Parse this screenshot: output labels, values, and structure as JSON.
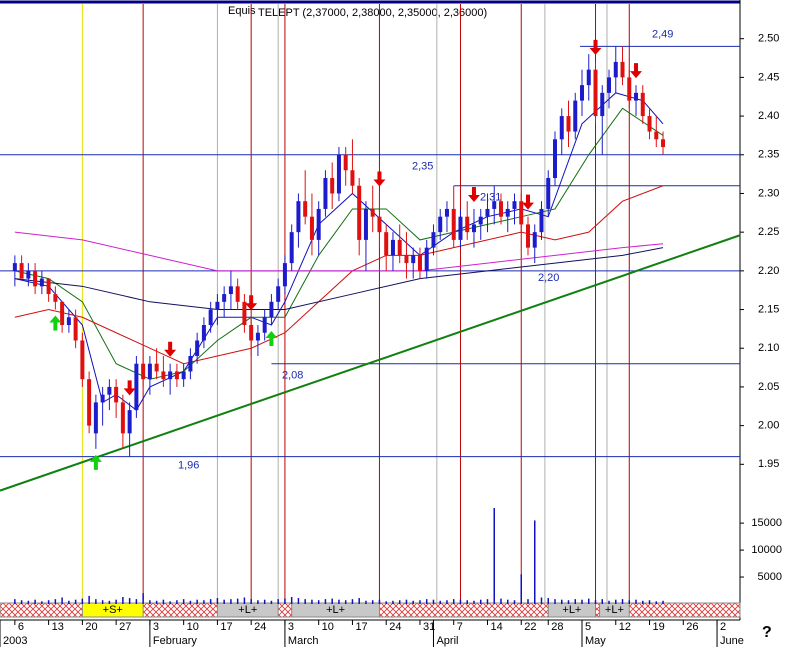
{
  "chart_data": {
    "type": "candlestick",
    "title": "TELEPT (2,37000, 2,38000, 2,35000, 2,36000)",
    "header": "Equis",
    "help": "?",
    "ylim": [
      1.9,
      2.55
    ],
    "yticks": [
      1.95,
      {
        "value": 2.0,
        "label": "2.00"
      },
      2.05,
      {
        "value": 2.1,
        "label": "2.10"
      },
      2.15,
      {
        "value": 2.2,
        "label": "2.20"
      },
      2.25,
      {
        "value": 2.3,
        "label": "2.30"
      },
      2.35,
      {
        "value": 2.4,
        "label": "2.40"
      },
      2.45,
      {
        "value": 2.5,
        "label": "2.50"
      }
    ],
    "xlim": [
      -2.2,
      107.4
    ],
    "xticks": [
      {
        "value": 0,
        "label": "6"
      },
      {
        "value": 5,
        "label": "13"
      },
      {
        "value": 10,
        "label": "20"
      },
      {
        "value": 15,
        "label": "27"
      },
      {
        "value": 20,
        "label": "3"
      },
      {
        "value": 25,
        "label": "10"
      },
      {
        "value": 30,
        "label": "17"
      },
      {
        "value": 35,
        "label": "24"
      },
      {
        "value": 40,
        "label": "3"
      },
      {
        "value": 45,
        "label": "10"
      },
      {
        "value": 50,
        "label": "17"
      },
      {
        "value": 55,
        "label": "24"
      },
      {
        "value": 60,
        "label": "31"
      },
      {
        "value": 65,
        "label": "7"
      },
      {
        "value": 70,
        "label": "14"
      },
      {
        "value": 75,
        "label": "22"
      },
      {
        "value": 79,
        "label": "28"
      },
      {
        "value": 84,
        "label": "5"
      },
      {
        "value": 89,
        "label": "12"
      },
      {
        "value": 94,
        "label": "19"
      },
      {
        "value": 99,
        "label": "26"
      },
      {
        "value": 104,
        "label": "2"
      }
    ],
    "month_ticks": [
      {
        "value": -2.2,
        "label": "2003"
      },
      {
        "value": 20,
        "label": "February"
      },
      {
        "value": 40,
        "label": "March"
      },
      {
        "value": 62,
        "label": "April"
      },
      {
        "value": 84,
        "label": "May"
      },
      {
        "value": 104,
        "label": "June"
      }
    ],
    "up_color": "#1c1ccc",
    "down_color": "#e01010",
    "open": [
      2.2,
      2.21,
      2.19,
      2.2,
      2.18,
      2.19,
      2.17,
      2.16,
      2.13,
      2.14,
      2.11,
      2.06,
      1.99,
      2.03,
      2.04,
      2.05,
      2.03,
      1.99,
      2.02,
      2.08,
      2.06,
      2.08,
      2.07,
      2.06,
      2.07,
      2.06,
      2.07,
      2.09,
      2.11,
      2.13,
      2.15,
      2.16,
      2.17,
      2.18,
      2.16,
      2.13,
      2.11,
      2.12,
      2.14,
      2.16,
      2.18,
      2.21,
      2.25,
      2.29,
      2.27,
      2.24,
      2.28,
      2.32,
      2.3,
      2.35,
      2.33,
      2.31,
      2.24,
      2.28,
      2.27,
      2.25,
      2.22,
      2.24,
      2.22,
      2.21,
      2.22,
      2.2,
      2.23,
      2.25,
      2.27,
      2.28,
      2.24,
      2.27,
      2.25,
      2.26,
      2.27,
      2.28,
      2.29,
      2.27,
      2.28,
      2.29,
      2.26,
      2.23,
      2.25,
      2.28,
      2.32,
      2.37,
      2.4,
      2.38,
      2.42,
      2.44,
      2.46,
      2.4,
      2.43,
      2.45,
      2.47,
      2.45,
      2.42,
      2.43,
      2.4,
      2.38,
      2.37
    ],
    "high": [
      2.22,
      2.22,
      2.21,
      2.21,
      2.2,
      2.19,
      2.18,
      2.16,
      2.15,
      2.15,
      2.12,
      2.07,
      2.04,
      2.05,
      2.06,
      2.06,
      2.04,
      2.03,
      2.09,
      2.1,
      2.09,
      2.1,
      2.09,
      2.08,
      2.08,
      2.08,
      2.1,
      2.12,
      2.14,
      2.16,
      2.17,
      2.18,
      2.2,
      2.19,
      2.17,
      2.14,
      2.13,
      2.15,
      2.17,
      2.19,
      2.22,
      2.26,
      2.3,
      2.33,
      2.3,
      2.29,
      2.33,
      2.34,
      2.36,
      2.36,
      2.37,
      2.32,
      2.29,
      2.31,
      2.3,
      2.26,
      2.25,
      2.26,
      2.25,
      2.23,
      2.23,
      2.24,
      2.26,
      2.28,
      2.29,
      2.31,
      2.28,
      2.29,
      2.28,
      2.28,
      2.3,
      2.31,
      2.3,
      2.29,
      2.3,
      2.3,
      2.27,
      2.26,
      2.29,
      2.33,
      2.38,
      2.41,
      2.42,
      2.43,
      2.46,
      2.48,
      2.47,
      2.44,
      2.46,
      2.49,
      2.49,
      2.46,
      2.44,
      2.44,
      2.41,
      2.4,
      2.38
    ],
    "low": [
      2.18,
      2.19,
      2.18,
      2.17,
      2.17,
      2.16,
      2.15,
      2.12,
      2.12,
      2.1,
      2.05,
      1.99,
      1.97,
      2.0,
      2.02,
      2.01,
      1.97,
      1.96,
      2.01,
      2.05,
      2.04,
      2.06,
      2.05,
      2.04,
      2.05,
      2.05,
      2.06,
      2.08,
      2.1,
      2.12,
      2.13,
      2.14,
      2.15,
      2.15,
      2.12,
      2.09,
      2.09,
      2.11,
      2.13,
      2.15,
      2.17,
      2.2,
      2.23,
      2.26,
      2.22,
      2.22,
      2.27,
      2.28,
      2.29,
      2.31,
      2.3,
      2.22,
      2.2,
      2.25,
      2.23,
      2.2,
      2.2,
      2.21,
      2.19,
      2.19,
      2.19,
      2.19,
      2.22,
      2.24,
      2.25,
      2.23,
      2.23,
      2.24,
      2.23,
      2.24,
      2.25,
      2.26,
      2.26,
      2.25,
      2.26,
      2.25,
      2.22,
      2.21,
      2.24,
      2.27,
      2.31,
      2.35,
      2.36,
      2.37,
      2.4,
      2.42,
      2.39,
      2.35,
      2.41,
      2.43,
      2.44,
      2.41,
      2.4,
      2.39,
      2.37,
      2.36,
      2.35
    ],
    "close": [
      2.21,
      2.19,
      2.2,
      2.18,
      2.19,
      2.17,
      2.16,
      2.13,
      2.14,
      2.11,
      2.06,
      2.0,
      2.03,
      2.04,
      2.05,
      2.03,
      1.99,
      2.02,
      2.08,
      2.06,
      2.08,
      2.07,
      2.06,
      2.07,
      2.06,
      2.07,
      2.09,
      2.11,
      2.13,
      2.15,
      2.16,
      2.17,
      2.18,
      2.16,
      2.13,
      2.11,
      2.12,
      2.14,
      2.16,
      2.18,
      2.21,
      2.25,
      2.29,
      2.27,
      2.24,
      2.28,
      2.32,
      2.3,
      2.35,
      2.33,
      2.31,
      2.24,
      2.28,
      2.27,
      2.25,
      2.22,
      2.24,
      2.22,
      2.21,
      2.22,
      2.2,
      2.23,
      2.25,
      2.27,
      2.28,
      2.24,
      2.27,
      2.25,
      2.26,
      2.27,
      2.28,
      2.29,
      2.27,
      2.28,
      2.29,
      2.26,
      2.23,
      2.25,
      2.28,
      2.32,
      2.37,
      2.4,
      2.38,
      2.42,
      2.44,
      2.46,
      2.4,
      2.43,
      2.45,
      2.47,
      2.45,
      2.42,
      2.43,
      2.4,
      2.38,
      2.37,
      2.36
    ],
    "volume": [
      900,
      700,
      600,
      800,
      500,
      700,
      900,
      1200,
      600,
      800,
      1000,
      1500,
      900,
      700,
      600,
      800,
      1300,
      1100,
      900,
      2000,
      700,
      600,
      800,
      500,
      700,
      900,
      600,
      800,
      700,
      900,
      1100,
      800,
      900,
      1000,
      1200,
      900,
      700,
      800,
      600,
      900,
      1000,
      1300,
      1100,
      900,
      800,
      700,
      900,
      1000,
      800,
      700,
      900,
      1100,
      600,
      700,
      800,
      500,
      600,
      700,
      800,
      600,
      700,
      900,
      800,
      600,
      700,
      900,
      800,
      700,
      600,
      800,
      900,
      17800,
      1000,
      800,
      700,
      5500,
      900,
      15500,
      1200,
      1100,
      900,
      800,
      700,
      900,
      800,
      1000,
      700,
      900,
      600,
      800,
      900,
      700,
      800,
      600,
      700,
      500,
      600
    ],
    "vlim": [
      0,
      21700
    ],
    "vticks": [
      5000,
      10000,
      15000
    ],
    "moving_averages": [
      {
        "color": "#1010c0",
        "x": [
          0,
          5,
          10,
          13,
          15,
          18,
          20,
          25,
          30,
          35,
          38,
          40,
          45,
          50,
          55,
          60,
          65,
          70,
          75,
          79,
          84,
          89,
          93,
          96
        ],
        "values": [
          2.19,
          2.18,
          2.13,
          2.03,
          2.04,
          2.02,
          2.05,
          2.07,
          2.14,
          2.14,
          2.13,
          2.16,
          2.26,
          2.3,
          2.26,
          2.22,
          2.25,
          2.27,
          2.28,
          2.27,
          2.39,
          2.43,
          2.42,
          2.39
        ]
      },
      {
        "color": "#107010",
        "x": [
          0,
          5,
          10,
          15,
          20,
          25,
          30,
          35,
          40,
          45,
          50,
          55,
          60,
          65,
          70,
          75,
          80,
          85,
          90,
          96
        ],
        "values": [
          2.2,
          2.19,
          2.16,
          2.08,
          2.06,
          2.07,
          2.11,
          2.14,
          2.14,
          2.22,
          2.28,
          2.28,
          2.24,
          2.25,
          2.26,
          2.27,
          2.28,
          2.35,
          2.41,
          2.375
        ]
      },
      {
        "color": "#d01010",
        "x": [
          0,
          5,
          10,
          15,
          20,
          25,
          30,
          35,
          40,
          45,
          50,
          55,
          60,
          65,
          70,
          75,
          80,
          85,
          90,
          96
        ],
        "values": [
          2.14,
          2.15,
          2.14,
          2.12,
          2.1,
          2.08,
          2.09,
          2.1,
          2.12,
          2.16,
          2.2,
          2.22,
          2.22,
          2.23,
          2.24,
          2.25,
          2.24,
          2.25,
          2.29,
          2.31
        ]
      },
      {
        "color": "#101060",
        "x": [
          0,
          10,
          20,
          30,
          40,
          50,
          60,
          70,
          80,
          90,
          96
        ],
        "values": [
          2.19,
          2.18,
          2.16,
          2.15,
          2.15,
          2.17,
          2.19,
          2.2,
          2.21,
          2.22,
          2.23
        ]
      },
      {
        "color": "#d020d0",
        "x": [
          0,
          10,
          20,
          30,
          40,
          50,
          60,
          70,
          80,
          90,
          96
        ],
        "values": [
          2.25,
          2.24,
          2.22,
          2.2,
          2.2,
          2.2,
          2.2,
          2.21,
          2.22,
          2.23,
          2.235
        ]
      }
    ],
    "trendline": {
      "color": "#108010",
      "x": [
        -2.2,
        107.4
      ],
      "values": [
        1.916,
        2.246
      ]
    },
    "levels": [
      {
        "value": 2.49,
        "label": "2,49",
        "from": 83.7
      },
      {
        "value": 2.35,
        "label": "2,35",
        "from": -2.2
      },
      {
        "value": 2.31,
        "label": "2,31",
        "from": 65
      },
      {
        "value": 2.2,
        "label": "2,20",
        "from": -2.2
      },
      {
        "value": 2.08,
        "label": "2,08",
        "from": 38
      },
      {
        "value": 1.96,
        "label": "1,96",
        "from": -2.2
      }
    ],
    "red_lines": [
      19,
      35,
      40,
      54,
      66,
      75,
      86,
      91
    ],
    "yellow_lines": [
      10
    ],
    "grey_lines": [
      30,
      39,
      62.5,
      78.5,
      87.7
    ],
    "signals_down": [
      17,
      23,
      35,
      54,
      68,
      76,
      86,
      92
    ],
    "signals_up": [
      6,
      12,
      38
    ],
    "strip": [
      {
        "from": 10,
        "to": 19,
        "label": "+S+",
        "color": "#ffff00"
      },
      {
        "from": 30,
        "to": 39,
        "label": "+L+",
        "color": "#c8c8c8"
      },
      {
        "from": 41,
        "to": 54,
        "label": "+L+",
        "color": "#c8c8c8"
      },
      {
        "from": 79,
        "to": 86,
        "label": "+L+",
        "color": "#c8c8c8"
      },
      {
        "from": 86.6,
        "to": 91,
        "label": "+L+",
        "color": "#c8c8c8"
      }
    ]
  }
}
